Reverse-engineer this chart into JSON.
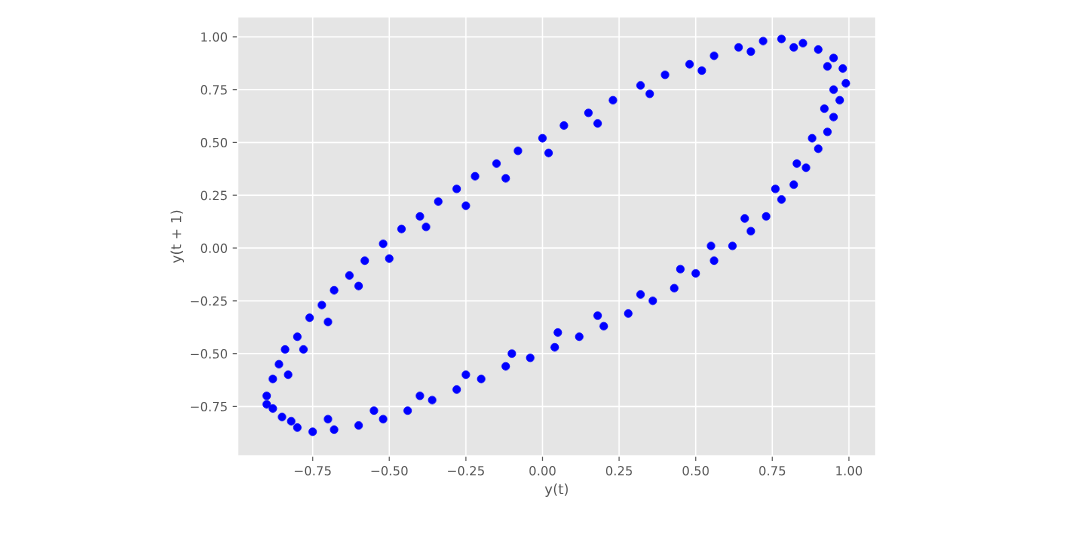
{
  "chart_data": {
    "type": "scatter",
    "xlabel": "y(t)",
    "ylabel": "y(t + 1)",
    "grid": true,
    "marker": "circle",
    "xlim": [
      -0.995,
      1.088
    ],
    "ylim": [
      -0.985,
      1.095
    ],
    "xticks": [
      {
        "value": -0.75,
        "label": "−0.75"
      },
      {
        "value": -0.5,
        "label": "−0.50"
      },
      {
        "value": -0.25,
        "label": "−0.25"
      },
      {
        "value": 0,
        "label": "0.00"
      },
      {
        "value": 0.25,
        "label": "0.25"
      },
      {
        "value": 0.5,
        "label": "0.50"
      },
      {
        "value": 0.75,
        "label": "0.75"
      },
      {
        "value": 1,
        "label": "1.00"
      }
    ],
    "yticks": [
      {
        "value": -0.75,
        "label": "−0.75"
      },
      {
        "value": -0.5,
        "label": "−0.50"
      },
      {
        "value": -0.25,
        "label": "−0.25"
      },
      {
        "value": 0,
        "label": "0.00"
      },
      {
        "value": 0.25,
        "label": "0.25"
      },
      {
        "value": 0.5,
        "label": "0.50"
      },
      {
        "value": 0.75,
        "label": "0.75"
      },
      {
        "value": 1,
        "label": "1.00"
      }
    ],
    "series": [
      {
        "color": "#0000ff",
        "x": [
          -0.9,
          -0.88,
          -0.86,
          -0.84,
          -0.8,
          -0.76,
          -0.72,
          -0.68,
          -0.63,
          -0.58,
          -0.52,
          -0.46,
          -0.4,
          -0.34,
          -0.28,
          -0.22,
          -0.15,
          -0.08,
          0.0,
          0.07,
          0.15,
          0.23,
          0.32,
          0.4,
          0.48,
          0.56,
          0.64,
          0.72,
          0.78,
          0.85,
          0.9,
          0.95,
          0.98,
          0.99,
          0.97,
          0.95,
          0.93,
          0.9,
          0.86,
          0.82,
          0.78,
          0.73,
          0.68,
          0.62,
          0.56,
          0.5,
          0.43,
          0.36,
          0.28,
          0.2,
          0.12,
          0.04,
          -0.04,
          -0.12,
          -0.2,
          -0.28,
          -0.36,
          -0.44,
          -0.52,
          -0.6,
          -0.68,
          -0.75,
          -0.8,
          -0.85,
          -0.88,
          -0.83,
          -0.78,
          -0.7,
          -0.6,
          -0.5,
          -0.38,
          -0.25,
          -0.12,
          0.02,
          0.18,
          0.35,
          0.52,
          0.68,
          0.82,
          0.93,
          0.95,
          0.92,
          0.88,
          0.83,
          0.76,
          0.66,
          0.55,
          0.45,
          0.32,
          0.18,
          0.05,
          -0.1,
          -0.25,
          -0.4,
          -0.55,
          -0.7,
          -0.82,
          -0.9
        ],
        "values": [
          -0.7,
          -0.62,
          -0.55,
          -0.48,
          -0.42,
          -0.33,
          -0.27,
          -0.2,
          -0.13,
          -0.06,
          0.02,
          0.09,
          0.15,
          0.22,
          0.28,
          0.34,
          0.4,
          0.46,
          0.52,
          0.58,
          0.64,
          0.7,
          0.77,
          0.82,
          0.87,
          0.91,
          0.95,
          0.98,
          0.99,
          0.97,
          0.94,
          0.9,
          0.85,
          0.78,
          0.7,
          0.62,
          0.55,
          0.47,
          0.38,
          0.3,
          0.23,
          0.15,
          0.08,
          0.01,
          -0.06,
          -0.12,
          -0.19,
          -0.25,
          -0.31,
          -0.37,
          -0.42,
          -0.47,
          -0.52,
          -0.56,
          -0.62,
          -0.67,
          -0.72,
          -0.77,
          -0.81,
          -0.84,
          -0.86,
          -0.87,
          -0.85,
          -0.8,
          -0.76,
          -0.6,
          -0.48,
          -0.35,
          -0.18,
          -0.05,
          0.1,
          0.2,
          0.33,
          0.45,
          0.59,
          0.73,
          0.84,
          0.93,
          0.95,
          0.86,
          0.75,
          0.66,
          0.52,
          0.4,
          0.28,
          0.14,
          0.01,
          -0.1,
          -0.22,
          -0.32,
          -0.4,
          -0.5,
          -0.6,
          -0.7,
          -0.77,
          -0.81,
          -0.82,
          -0.74
        ]
      }
    ]
  }
}
